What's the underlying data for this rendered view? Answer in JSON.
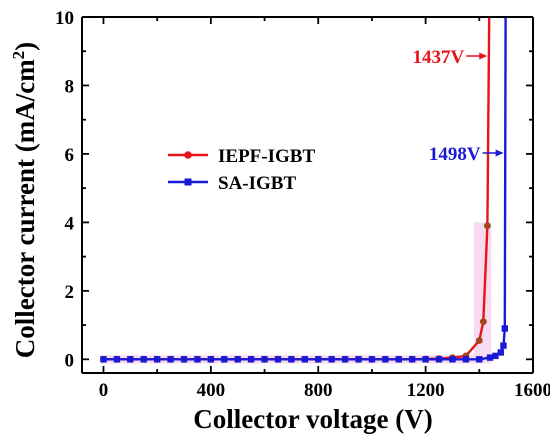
{
  "chart_data": {
    "type": "line",
    "title": "",
    "xlabel": "Collector voltage (V)",
    "ylabel_main": "Collector current (mA/cm",
    "ylabel_sup": "2",
    "ylabel_close": ")",
    "xlim": [
      -80,
      1600
    ],
    "ylim": [
      -0.4,
      10
    ],
    "x_ticks": [
      0,
      400,
      800,
      1200,
      1600
    ],
    "x_tick_labels": [
      "0",
      "400",
      "800",
      "1200",
      "1600"
    ],
    "y_ticks": [
      0,
      2,
      4,
      6,
      8,
      10
    ],
    "y_tick_labels": [
      "0",
      "2",
      "4",
      "6",
      "8",
      "10"
    ],
    "legend_position": "middle-left",
    "series": [
      {
        "name": "IEPF-IGBT",
        "color": "#e8141a",
        "marker_color": "#a0461e",
        "marker": "circle",
        "points": [
          [
            0,
            0
          ],
          [
            50,
            0
          ],
          [
            100,
            0
          ],
          [
            150,
            0
          ],
          [
            200,
            0
          ],
          [
            250,
            0
          ],
          [
            300,
            0
          ],
          [
            350,
            0
          ],
          [
            400,
            0
          ],
          [
            450,
            0
          ],
          [
            500,
            0
          ],
          [
            550,
            0
          ],
          [
            600,
            0
          ],
          [
            650,
            0
          ],
          [
            700,
            0
          ],
          [
            750,
            0
          ],
          [
            800,
            0
          ],
          [
            850,
            0
          ],
          [
            900,
            0
          ],
          [
            950,
            0
          ],
          [
            1000,
            0
          ],
          [
            1050,
            0
          ],
          [
            1100,
            0
          ],
          [
            1150,
            0
          ],
          [
            1200,
            0.01
          ],
          [
            1250,
            0.02
          ],
          [
            1300,
            0.05
          ],
          [
            1350,
            0.1
          ],
          [
            1400,
            0.55
          ],
          [
            1415,
            1.1
          ],
          [
            1430,
            3.9
          ],
          [
            1437,
            10
          ]
        ],
        "breakdown_label": "1437V"
      },
      {
        "name": "SA-IGBT",
        "color": "#1a1ad6",
        "marker_color": "#1a1ad6",
        "marker": "square",
        "points": [
          [
            0,
            0
          ],
          [
            50,
            0
          ],
          [
            100,
            0
          ],
          [
            150,
            0
          ],
          [
            200,
            0
          ],
          [
            250,
            0
          ],
          [
            300,
            0
          ],
          [
            350,
            0
          ],
          [
            400,
            0
          ],
          [
            450,
            0
          ],
          [
            500,
            0
          ],
          [
            550,
            0
          ],
          [
            600,
            0
          ],
          [
            650,
            0
          ],
          [
            700,
            0
          ],
          [
            750,
            0
          ],
          [
            800,
            0
          ],
          [
            850,
            0
          ],
          [
            900,
            0
          ],
          [
            950,
            0
          ],
          [
            1000,
            0
          ],
          [
            1050,
            0
          ],
          [
            1100,
            0
          ],
          [
            1150,
            0
          ],
          [
            1200,
            0
          ],
          [
            1250,
            0
          ],
          [
            1300,
            0
          ],
          [
            1350,
            0
          ],
          [
            1400,
            0
          ],
          [
            1440,
            0.05
          ],
          [
            1460,
            0.1
          ],
          [
            1480,
            0.2
          ],
          [
            1490,
            0.4
          ],
          [
            1495,
            0.9
          ],
          [
            1498,
            10
          ]
        ],
        "breakdown_label": "1498V"
      }
    ]
  }
}
